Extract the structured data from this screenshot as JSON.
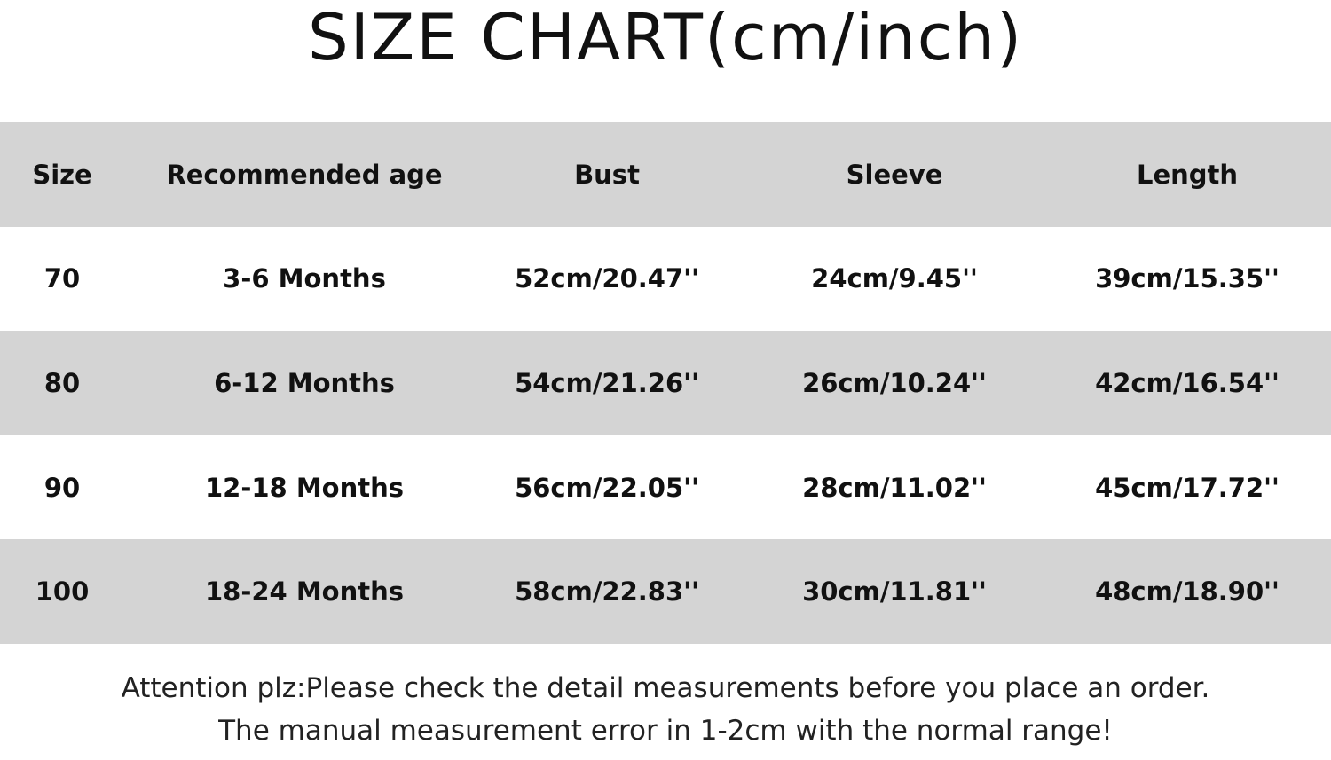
{
  "title": "SIZE CHART(cm/inch)",
  "table": {
    "headers": [
      "Size",
      "Recommended age",
      "Bust",
      "Sleeve",
      "Length"
    ],
    "rows": [
      [
        "70",
        "3-6 Months",
        "52cm/20.47''",
        "24cm/9.45''",
        "39cm/15.35''"
      ],
      [
        "80",
        "6-12 Months",
        "54cm/21.26''",
        "26cm/10.24''",
        "42cm/16.54''"
      ],
      [
        "90",
        "12-18 Months",
        "56cm/22.05''",
        "28cm/11.02''",
        "45cm/17.72''"
      ],
      [
        "100",
        "18-24 Months",
        "58cm/22.83''",
        "30cm/11.81''",
        "48cm/18.90''"
      ]
    ]
  },
  "notes": [
    "Attention plz:Please check the detail measurements before you place an order.",
    "The manual measurement error in 1-2cm with the normal range!"
  ],
  "colors": {
    "stripe": "#d4d4d4",
    "background": "#ffffff",
    "text": "#111111"
  }
}
